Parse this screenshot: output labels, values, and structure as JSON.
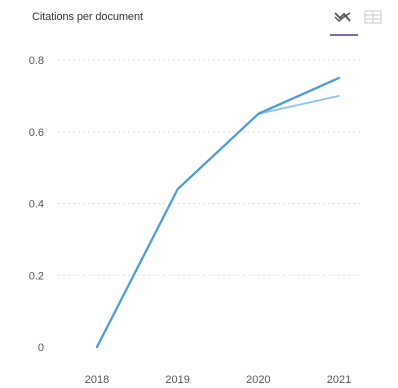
{
  "header": {
    "title": "Citations per document",
    "icons": [
      "line-chart-icon",
      "table-view-icon"
    ],
    "active_view": "chart"
  },
  "colors": {
    "series_primary": "#4a9ad6",
    "series_secondary": "#8cc4ec",
    "grid": "#dddddd",
    "tab_underline": "#7c6aa8"
  },
  "chart_data": {
    "type": "line",
    "title": "Citations per document",
    "xlabel": "",
    "ylabel": "",
    "x": [
      "2018",
      "2019",
      "2020",
      "2021"
    ],
    "ylim": [
      0,
      0.8
    ],
    "yticks": [
      "0",
      "0.2",
      "0.4",
      "0.6",
      "0.8"
    ],
    "grid": true,
    "series": [
      {
        "values": [
          0,
          0.44,
          0.65,
          0.75
        ],
        "color": "#4a9ad6"
      },
      {
        "values": [
          0,
          0.44,
          0.65,
          0.7
        ],
        "color": "#8cc4ec"
      }
    ]
  }
}
